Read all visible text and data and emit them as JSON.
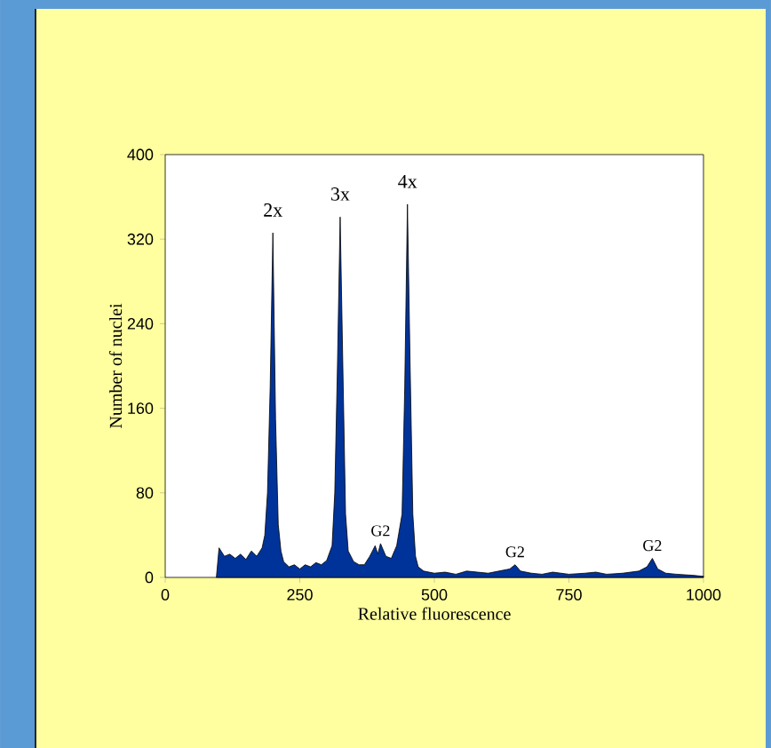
{
  "chart_data": {
    "type": "area",
    "xlabel": "Relative fluorescence",
    "ylabel": "Number of nuclei",
    "xlim": [
      0,
      1000
    ],
    "ylim": [
      0,
      400
    ],
    "xticks": [
      0,
      250,
      500,
      750,
      1000
    ],
    "yticks": [
      0,
      80,
      160,
      240,
      320,
      400
    ],
    "series": [
      {
        "color": "#003399",
        "x": [
          95,
          100,
          110,
          120,
          130,
          140,
          150,
          160,
          170,
          180,
          185,
          190,
          195,
          200,
          205,
          210,
          215,
          220,
          230,
          240,
          250,
          260,
          270,
          280,
          290,
          300,
          310,
          315,
          320,
          325,
          330,
          335,
          340,
          350,
          360,
          370,
          380,
          390,
          395,
          400,
          410,
          420,
          430,
          440,
          445,
          450,
          455,
          460,
          465,
          470,
          480,
          500,
          520,
          540,
          560,
          580,
          600,
          620,
          640,
          650,
          660,
          680,
          700,
          720,
          750,
          780,
          800,
          820,
          850,
          880,
          895,
          905,
          915,
          930,
          950,
          980,
          1000
        ],
        "values": [
          0,
          28,
          20,
          22,
          18,
          22,
          17,
          25,
          20,
          28,
          40,
          80,
          180,
          326,
          150,
          50,
          25,
          15,
          10,
          12,
          8,
          12,
          10,
          14,
          12,
          16,
          30,
          80,
          200,
          341,
          200,
          60,
          25,
          15,
          12,
          12,
          20,
          30,
          22,
          32,
          20,
          18,
          30,
          60,
          180,
          353,
          200,
          60,
          20,
          10,
          6,
          4,
          5,
          3,
          6,
          5,
          4,
          6,
          8,
          12,
          6,
          4,
          3,
          5,
          3,
          4,
          5,
          3,
          4,
          6,
          10,
          18,
          8,
          4,
          3,
          2,
          1
        ]
      }
    ],
    "annotations": [
      {
        "text": "2x",
        "x": 200,
        "y": 326
      },
      {
        "text": "3x",
        "x": 325,
        "y": 341
      },
      {
        "text": "4x",
        "x": 450,
        "y": 353
      },
      {
        "text": "G2",
        "x": 400,
        "y": 32
      },
      {
        "text": "G2",
        "x": 650,
        "y": 12
      },
      {
        "text": "G2",
        "x": 905,
        "y": 18
      }
    ]
  }
}
